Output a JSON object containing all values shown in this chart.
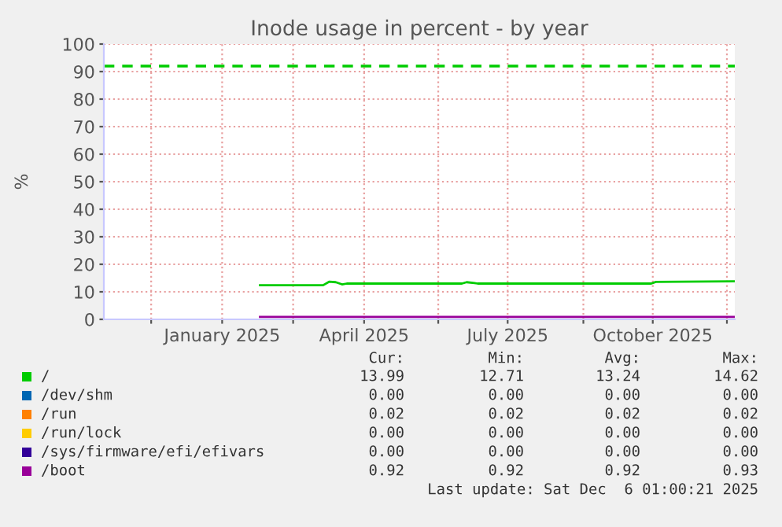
{
  "chart_data": {
    "type": "line",
    "title": "Inode usage in percent - by year",
    "ylabel": "%",
    "series": [
      {
        "name": "/",
        "color": "#00cc00",
        "x": [
          "2025-02-08",
          "2025-03-20",
          "2025-03-24",
          "2025-03-28",
          "2025-04-01",
          "2025-04-04",
          "2025-06-16",
          "2025-06-19",
          "2025-06-24",
          "2025-06-26",
          "2025-10-14",
          "2025-10-17",
          "2025-12-06"
        ],
        "values": [
          12.4,
          12.4,
          13.7,
          13.5,
          12.7,
          13.0,
          13.0,
          13.5,
          13.2,
          13.0,
          13.0,
          13.6,
          13.8
        ]
      },
      {
        "name": "/dev/shm",
        "color": "#0066b3"
      },
      {
        "name": "/run",
        "color": "#ff8000"
      },
      {
        "name": "/run/lock",
        "color": "#ffcc00"
      },
      {
        "name": "/sys/firmware/efi/efivars",
        "color": "#330099"
      },
      {
        "name": "/boot",
        "color": "#990099",
        "x": [
          "2025-02-08",
          "2025-12-06"
        ],
        "values": [
          0.9,
          0.9
        ]
      }
    ],
    "ref_lines": [
      {
        "axis": "y",
        "value": 92,
        "color": "#00cc00",
        "line_style": "dashed"
      }
    ],
    "xlim": [
      "2024-11-01",
      "2025-12-06"
    ],
    "xticks": [
      {
        "value": "2024-12-01",
        "label": null
      },
      {
        "value": "2025-01-15",
        "label": "January 2025"
      },
      {
        "value": "2025-03-01",
        "label": null
      },
      {
        "value": "2025-04-15",
        "label": "April 2025"
      },
      {
        "value": "2025-06-01",
        "label": null
      },
      {
        "value": "2025-07-15",
        "label": "July 2025"
      },
      {
        "value": "2025-09-01",
        "label": null
      },
      {
        "value": "2025-10-15",
        "label": "October 2025"
      },
      {
        "value": "2025-12-01",
        "label": null
      }
    ],
    "ylim": [
      0,
      100
    ],
    "yticks": [
      0,
      10,
      20,
      30,
      40,
      50,
      60,
      70,
      80,
      90,
      100
    ],
    "grid": true,
    "legend": "bottom",
    "marker": "none",
    "line_style": "solid",
    "annotations": [
      "Cur:",
      "Min:",
      "Avg:",
      "Max:",
      "13.99",
      "12.71",
      "13.24",
      "14.62",
      "0.00",
      "0.00",
      "0.00",
      "0.00",
      "0.02",
      "0.02",
      "0.02",
      "0.02",
      "0.00",
      "0.00",
      "0.00",
      "0.00",
      "0.00",
      "0.00",
      "0.00",
      "0.00",
      "0.92",
      "0.92",
      "0.92",
      "0.93",
      "Last update: Sat Dec  6 01:00:21 2025"
    ]
  }
}
